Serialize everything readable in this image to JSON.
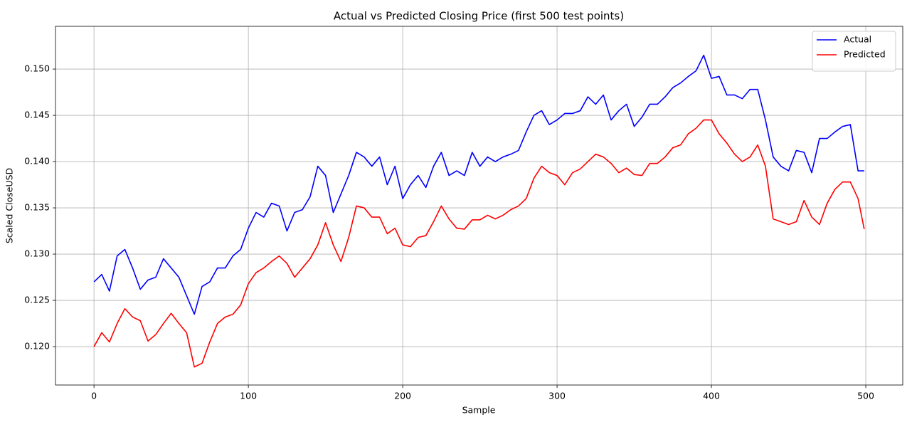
{
  "chart_data": {
    "type": "line",
    "title": "Actual vs Predicted Closing Price (first 500 test points)",
    "x_label": "Sample",
    "y_label": "Scaled CloseUSD",
    "x": [
      0,
      5,
      10,
      15,
      20,
      25,
      30,
      35,
      40,
      45,
      50,
      55,
      60,
      65,
      70,
      75,
      80,
      85,
      90,
      95,
      100,
      105,
      110,
      115,
      120,
      125,
      130,
      135,
      140,
      145,
      150,
      155,
      160,
      165,
      170,
      175,
      180,
      185,
      190,
      195,
      200,
      205,
      210,
      215,
      220,
      225,
      230,
      235,
      240,
      245,
      250,
      255,
      260,
      265,
      270,
      275,
      280,
      285,
      290,
      295,
      300,
      305,
      310,
      315,
      320,
      325,
      330,
      335,
      340,
      345,
      350,
      355,
      360,
      365,
      370,
      375,
      380,
      385,
      390,
      395,
      400,
      405,
      410,
      415,
      420,
      425,
      430,
      435,
      440,
      445,
      450,
      455,
      460,
      465,
      470,
      475,
      480,
      485,
      490,
      495,
      499
    ],
    "series": [
      {
        "name": "Actual",
        "color": "#0000ff",
        "values": [
          0.127,
          0.1278,
          0.126,
          0.1298,
          0.1305,
          0.1285,
          0.1262,
          0.1272,
          0.1275,
          0.1295,
          0.1285,
          0.1275,
          0.1255,
          0.1235,
          0.1265,
          0.127,
          0.1285,
          0.1285,
          0.1298,
          0.1305,
          0.1328,
          0.1345,
          0.134,
          0.1355,
          0.1352,
          0.1325,
          0.1345,
          0.1348,
          0.1362,
          0.1395,
          0.1385,
          0.1345,
          0.1365,
          0.1385,
          0.141,
          0.1405,
          0.1395,
          0.1405,
          0.1375,
          0.1395,
          0.136,
          0.1375,
          0.1385,
          0.1372,
          0.1395,
          0.141,
          0.1385,
          0.139,
          0.1385,
          0.141,
          0.1395,
          0.1405,
          0.14,
          0.1405,
          0.1408,
          0.1412,
          0.1432,
          0.145,
          0.1455,
          0.144,
          0.1445,
          0.1452,
          0.1452,
          0.1455,
          0.147,
          0.1462,
          0.1472,
          0.1445,
          0.1455,
          0.1462,
          0.1438,
          0.1448,
          0.1462,
          0.1462,
          0.147,
          0.148,
          0.1485,
          0.1492,
          0.1498,
          0.1515,
          0.149,
          0.1492,
          0.1472,
          0.1472,
          0.1468,
          0.1478,
          0.1478,
          0.1445,
          0.1405,
          0.1395,
          0.139,
          0.1412,
          0.141,
          0.1388,
          0.1425,
          0.1425,
          0.1432,
          0.1438,
          0.144,
          0.139,
          0.139
        ]
      },
      {
        "name": "Predicted",
        "color": "#ff0000",
        "values": [
          0.12,
          0.1215,
          0.1205,
          0.1225,
          0.1241,
          0.1232,
          0.1228,
          0.1206,
          0.1213,
          0.1225,
          0.1236,
          0.1225,
          0.1215,
          0.1178,
          0.1182,
          0.1205,
          0.1225,
          0.1232,
          0.1235,
          0.1245,
          0.1268,
          0.128,
          0.1285,
          0.1292,
          0.1298,
          0.129,
          0.1275,
          0.1285,
          0.1295,
          0.131,
          0.1334,
          0.131,
          0.1292,
          0.1318,
          0.1352,
          0.135,
          0.134,
          0.134,
          0.1322,
          0.1328,
          0.131,
          0.1308,
          0.1318,
          0.132,
          0.1335,
          0.1352,
          0.1338,
          0.1328,
          0.1327,
          0.1337,
          0.1337,
          0.1342,
          0.1338,
          0.1342,
          0.1348,
          0.1352,
          0.136,
          0.1382,
          0.1395,
          0.1388,
          0.1385,
          0.1375,
          0.1388,
          0.1392,
          0.14,
          0.1408,
          0.1405,
          0.1398,
          0.1388,
          0.1393,
          0.1386,
          0.1385,
          0.1398,
          0.1398,
          0.1405,
          0.1415,
          0.1418,
          0.143,
          0.1436,
          0.1445,
          0.1445,
          0.143,
          0.142,
          0.1408,
          0.14,
          0.1405,
          0.1418,
          0.1395,
          0.1338,
          0.1335,
          0.1332,
          0.1335,
          0.1358,
          0.134,
          0.1332,
          0.1355,
          0.137,
          0.1378,
          0.1378,
          0.136,
          0.1327
        ]
      }
    ],
    "xlim": [
      -24.95,
      523.95
    ],
    "xticks": [
      0,
      100,
      200,
      300,
      400,
      500
    ],
    "ylim": [
      0.11585,
      0.15462
    ],
    "yticks": [
      {
        "value": 0.12,
        "label": "0.120"
      },
      0.125,
      {
        "value": 0.13,
        "label": "0.130"
      },
      0.135,
      {
        "value": 0.14,
        "label": "0.140"
      },
      0.145,
      {
        "value": 0.15,
        "label": "0.150"
      }
    ],
    "grid": true,
    "legend": "upper right"
  }
}
